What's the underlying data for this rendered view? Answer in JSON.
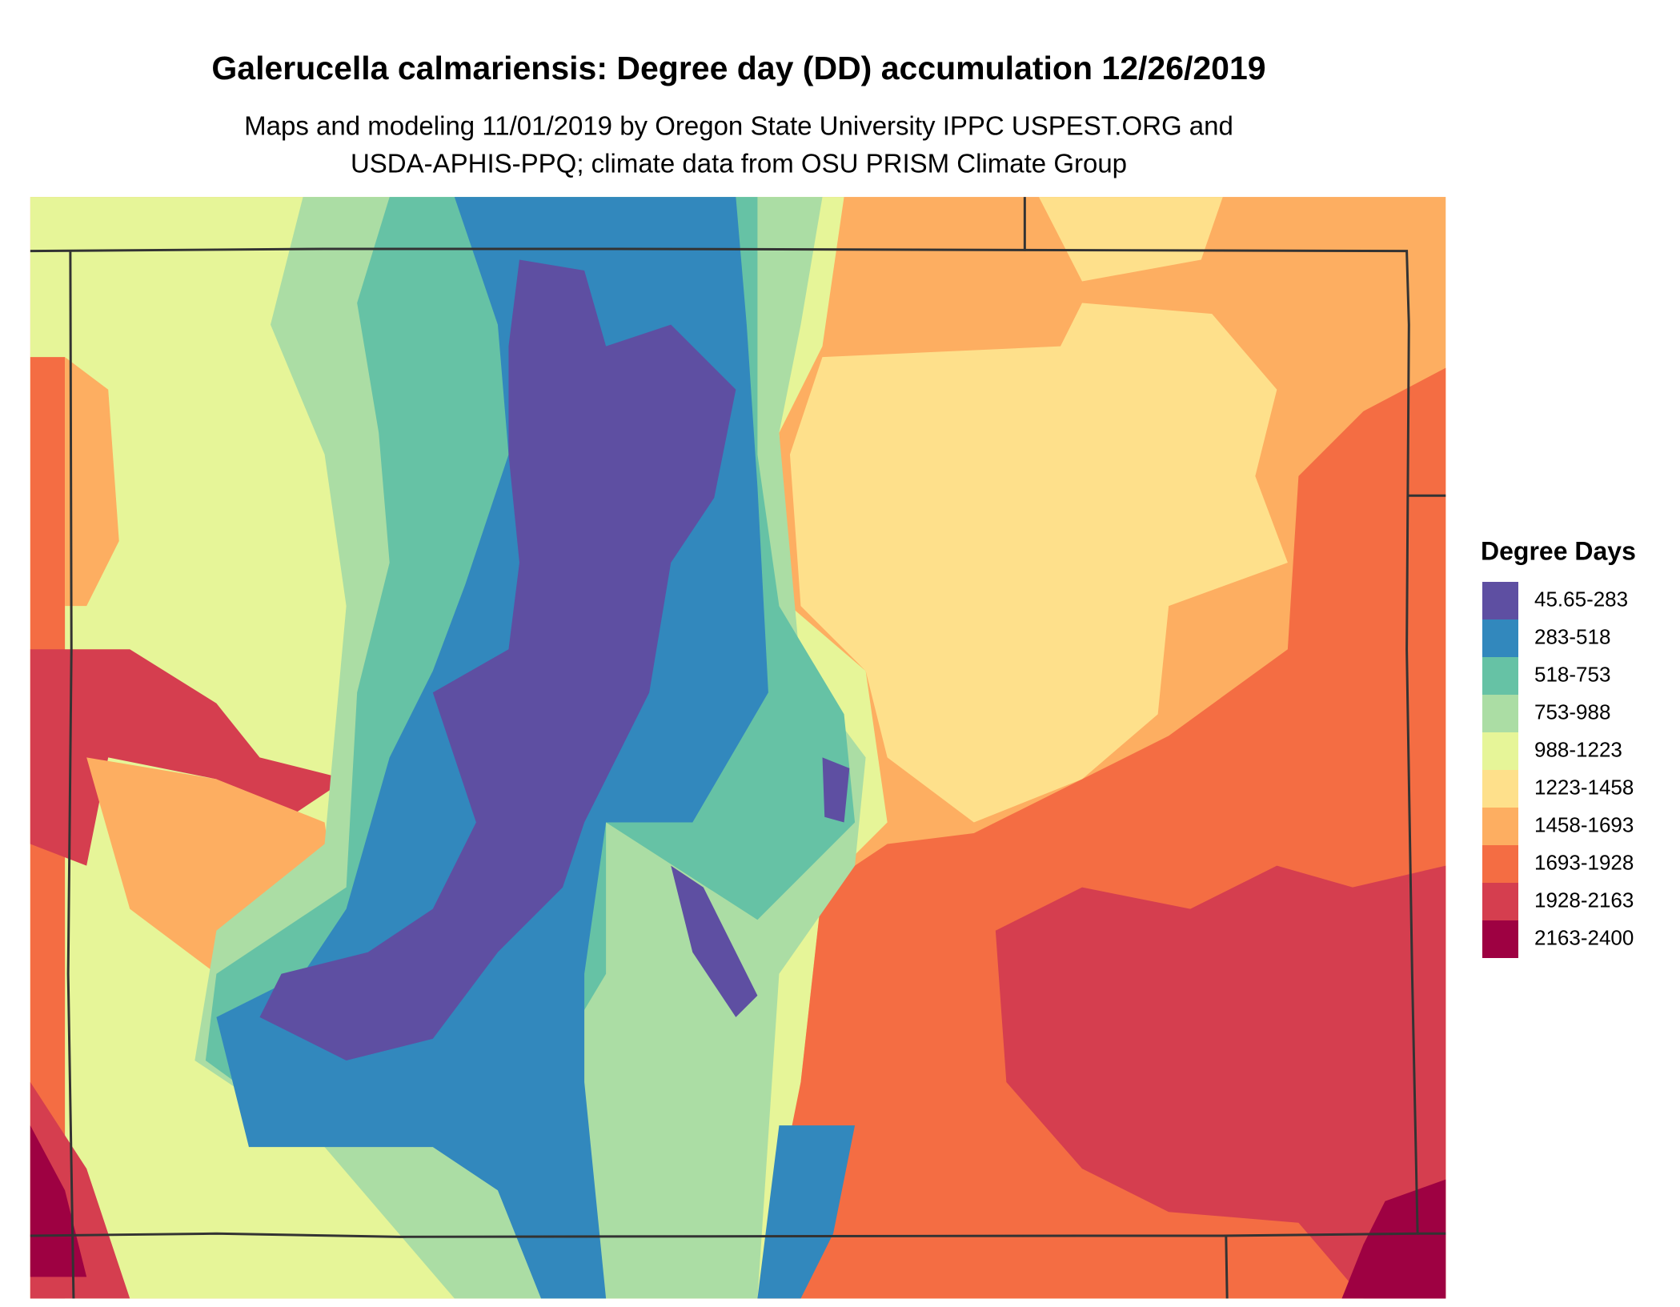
{
  "title": "Galerucella calmariensis: Degree day (DD) accumulation 12/26/2019",
  "subtitle": [
    "Maps and modeling 11/01/2019 by Oregon State University IPPC USPEST.ORG and",
    "USDA-APHIS-PPQ; climate data from OSU PRISM Climate Group"
  ],
  "legend": {
    "title": "Degree Days",
    "items": [
      {
        "label": "45.65-283",
        "color": "#5e4fa2"
      },
      {
        "label": "283-518",
        "color": "#3288bd"
      },
      {
        "label": "518-753",
        "color": "#66c2a5"
      },
      {
        "label": "753-988",
        "color": "#abdda4"
      },
      {
        "label": "988-1223",
        "color": "#e6f598"
      },
      {
        "label": "1223-1458",
        "color": "#fee08b"
      },
      {
        "label": "1458-1693",
        "color": "#fdae61"
      },
      {
        "label": "1693-1928",
        "color": "#f46d43"
      },
      {
        "label": "1928-2163",
        "color": "#d53e4f"
      },
      {
        "label": "2163-2400",
        "color": "#9e0142"
      }
    ]
  }
}
